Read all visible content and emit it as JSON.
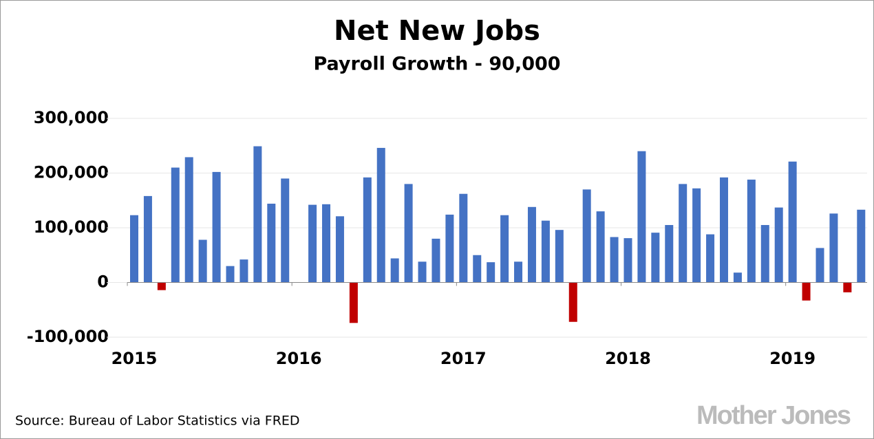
{
  "chart_data": {
    "type": "bar",
    "title": "Net New Jobs",
    "subtitle": "Payroll Growth - 90,000",
    "source": "Source: Bureau of Labor Statistics via FRED",
    "brand": "Mother Jones",
    "categories": [
      "2015",
      null,
      null,
      null,
      null,
      null,
      null,
      null,
      null,
      null,
      null,
      null,
      "2016",
      null,
      null,
      null,
      null,
      null,
      null,
      null,
      null,
      null,
      null,
      null,
      "2017",
      null,
      null,
      null,
      null,
      null,
      null,
      null,
      null,
      null,
      null,
      null,
      "2018",
      null,
      null,
      null,
      null,
      null,
      null,
      null,
      null,
      null,
      null,
      null,
      "2019",
      null,
      null,
      null,
      null,
      null
    ],
    "values": [
      123000,
      158000,
      -14000,
      210000,
      229000,
      78000,
      202000,
      30000,
      42000,
      249000,
      144000,
      190000,
      0,
      142000,
      143000,
      121000,
      -74000,
      192000,
      246000,
      44000,
      180000,
      38000,
      80000,
      124000,
      162000,
      50000,
      37000,
      123000,
      38000,
      138000,
      113000,
      96000,
      -72000,
      170000,
      130000,
      83000,
      81000,
      240000,
      91000,
      105000,
      180000,
      172000,
      88000,
      192000,
      18000,
      188000,
      105000,
      137000,
      221000,
      -33000,
      63000,
      126000,
      -18000,
      133000
    ],
    "color": "#4472c4",
    "negative_color": "#c00000",
    "ylim": [
      -100000,
      300000
    ],
    "yticks": [
      {
        "value": -100000,
        "label": "-100,000"
      },
      0,
      {
        "value": 100000,
        "label": "100,000"
      },
      {
        "value": 200000,
        "label": "200,000"
      },
      {
        "value": 300000,
        "label": "300,000"
      }
    ],
    "grid": true
  }
}
